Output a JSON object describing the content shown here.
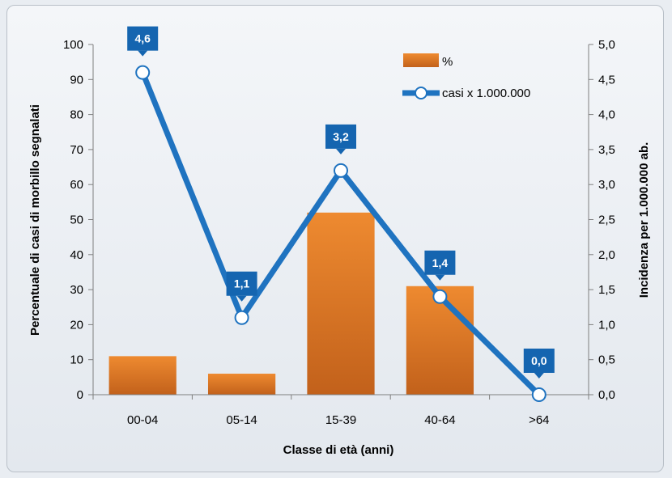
{
  "chart_data": {
    "type": "bar",
    "categories": [
      "00-04",
      "05-14",
      "15-39",
      "40-64",
      ">64"
    ],
    "series": [
      {
        "name": "%",
        "type": "bar",
        "axis": "left",
        "values": [
          11,
          6,
          52,
          31,
          0
        ]
      },
      {
        "name": "casi x 1.000.000",
        "type": "line",
        "axis": "right",
        "values": [
          4.6,
          1.1,
          3.2,
          1.4,
          0.0
        ]
      }
    ],
    "data_labels": [
      "4,6",
      "1,1",
      "3,2",
      "1,4",
      "0,0"
    ],
    "xlabel": "Classe di età (anni)",
    "ylabel": "Percentuale di casi di morbillo segnalati",
    "y2label": "Incidenza per 1.000.000 ab.",
    "ylim": [
      0,
      100
    ],
    "y2lim": [
      0,
      5
    ],
    "yticks": [
      "0",
      "10",
      "20",
      "30",
      "40",
      "50",
      "60",
      "70",
      "80",
      "90",
      "100"
    ],
    "y2ticks": [
      "0,0",
      "0,5",
      "1,0",
      "1,5",
      "2,0",
      "2,5",
      "3,0",
      "3,5",
      "4,0",
      "4,5",
      "5,0"
    ],
    "grid": false,
    "legend_position": "top-right",
    "colors": {
      "bar": "#e07c25",
      "bar_dark": "#c2611b",
      "line": "#1f73c0",
      "label_bg": "#1565b0"
    }
  }
}
